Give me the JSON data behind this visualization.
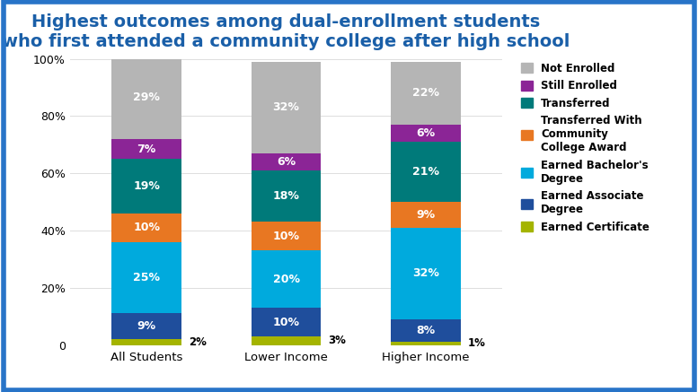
{
  "title": "Highest outcomes among dual-enrollment students\nwho first attended a community college after high school",
  "categories": [
    "All Students",
    "Lower Income",
    "Higher Income"
  ],
  "segments": [
    {
      "label": "Earned Certificate",
      "color": "#a4b400",
      "values": [
        2,
        3,
        1
      ]
    },
    {
      "label": "Earned Associate Degree",
      "color": "#1f4e9c",
      "values": [
        9,
        10,
        8
      ]
    },
    {
      "label": "Earned Bachelor's Degree",
      "color": "#00aadd",
      "values": [
        25,
        20,
        32
      ]
    },
    {
      "label": "Transferred With Community College Award",
      "color": "#e87722",
      "values": [
        10,
        10,
        9
      ]
    },
    {
      "label": "Transferred",
      "color": "#007a7a",
      "values": [
        19,
        18,
        21
      ]
    },
    {
      "label": "Still Enrolled",
      "color": "#8b2596",
      "values": [
        7,
        6,
        6
      ]
    },
    {
      "label": "Not Enrolled",
      "color": "#b5b5b5",
      "values": [
        29,
        32,
        22
      ]
    }
  ],
  "legend_labels": [
    "Not Enrolled",
    "Still Enrolled",
    "Transferred",
    "Transferred With\nCommunity\nCollege Award",
    "Earned Bachelor's\nDegree",
    "Earned Associate\nDegree",
    "Earned Certificate"
  ],
  "legend_colors": [
    "#b5b5b5",
    "#8b2596",
    "#007a7a",
    "#e87722",
    "#00aadd",
    "#1f4e9c",
    "#a4b400"
  ],
  "ylim": [
    0,
    100
  ],
  "yticks": [
    0,
    20,
    40,
    60,
    80,
    100
  ],
  "ytick_labels": [
    "0",
    "20%",
    "40%",
    "60%",
    "80%",
    "100%"
  ],
  "title_color": "#1a5fa8",
  "title_fontsize": 14,
  "background_color": "#ffffff",
  "border_color": "#2874c8",
  "bar_width": 0.5
}
